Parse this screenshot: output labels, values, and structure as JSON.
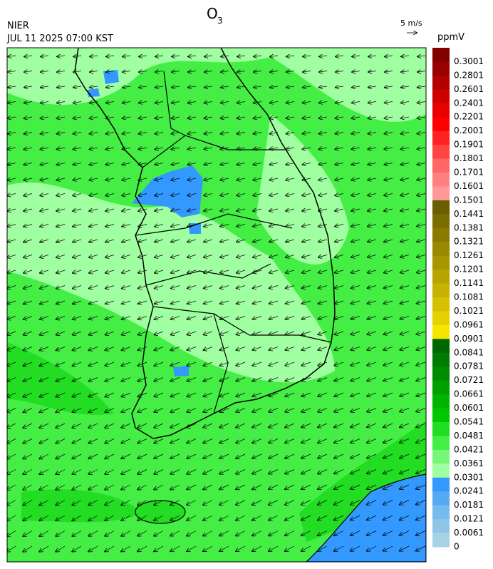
{
  "header": {
    "title": "O",
    "title_sub": "3",
    "agency": "NIER",
    "time": "JUL 11 2025 07:00 KST",
    "wind_scale": "5 m/s",
    "unit": "ppmV"
  },
  "colorbar": [
    {
      "label": "0.3001",
      "color": "#800000"
    },
    {
      "label": "0.2801",
      "color": "#990000"
    },
    {
      "label": "0.2601",
      "color": "#b30000"
    },
    {
      "label": "0.2401",
      "color": "#cc0000"
    },
    {
      "label": "0.2201",
      "color": "#e60000"
    },
    {
      "label": "0.2001",
      "color": "#ff0000"
    },
    {
      "label": "0.1901",
      "color": "#ff2222"
    },
    {
      "label": "0.1801",
      "color": "#ff4444"
    },
    {
      "label": "0.1701",
      "color": "#ff6666"
    },
    {
      "label": "0.1601",
      "color": "#ff8080"
    },
    {
      "label": "0.1501",
      "color": "#ff9999"
    },
    {
      "label": "0.1441",
      "color": "#6b5e00"
    },
    {
      "label": "0.1381",
      "color": "#7a6c00"
    },
    {
      "label": "0.1321",
      "color": "#8a7a00"
    },
    {
      "label": "0.1261",
      "color": "#998800"
    },
    {
      "label": "0.1201",
      "color": "#a89600"
    },
    {
      "label": "0.1141",
      "color": "#b8a400"
    },
    {
      "label": "0.1081",
      "color": "#c7b200"
    },
    {
      "label": "0.1021",
      "color": "#d6c000"
    },
    {
      "label": "0.0961",
      "color": "#e6d000"
    },
    {
      "label": "0.0901",
      "color": "#f5e600"
    },
    {
      "label": "0.0841",
      "color": "#006600"
    },
    {
      "label": "0.0781",
      "color": "#007a00"
    },
    {
      "label": "0.0721",
      "color": "#008c00"
    },
    {
      "label": "0.0661",
      "color": "#00a000"
    },
    {
      "label": "0.0601",
      "color": "#00b400"
    },
    {
      "label": "0.0541",
      "color": "#00c800"
    },
    {
      "label": "0.0481",
      "color": "#22dd22"
    },
    {
      "label": "0.0421",
      "color": "#44ee44"
    },
    {
      "label": "0.0361",
      "color": "#77f777"
    },
    {
      "label": "0.0301",
      "color": "#a0ffa0"
    },
    {
      "label": "0.0241",
      "color": "#3399ff"
    },
    {
      "label": "0.0181",
      "color": "#55aaf5"
    },
    {
      "label": "0.0121",
      "color": "#77bbee"
    },
    {
      "label": "0.0061",
      "color": "#8fc6e8"
    },
    {
      "label": "0",
      "color": "#a6d2e8"
    }
  ]
}
